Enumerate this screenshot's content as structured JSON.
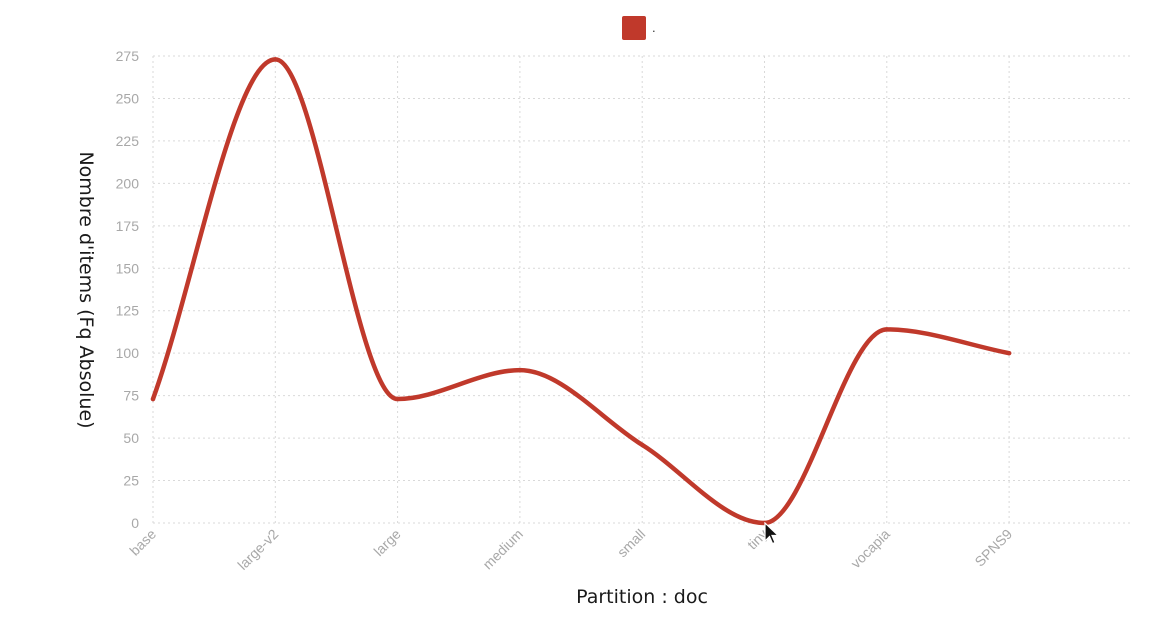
{
  "chart_data": {
    "type": "line",
    "categories": [
      "base",
      "large-v2",
      "large",
      "medium",
      "small",
      "tiny",
      "vocapia",
      "SPNS9"
    ],
    "series": [
      {
        "name": ".",
        "values": [
          73,
          273,
          73,
          90,
          46,
          0,
          114,
          100
        ]
      }
    ],
    "xlabel": "Partition : doc",
    "ylabel": "Nombre d'items (Fq Absolue)",
    "ylim": [
      0,
      275
    ],
    "yticks": [
      0,
      25,
      50,
      75,
      100,
      125,
      150,
      175,
      200,
      225,
      250,
      275
    ],
    "grid": true,
    "legend_position": "top-center",
    "smooth": true,
    "colors": {
      "series": "#c0392b",
      "grid": "#d9d9d9",
      "tick_text": "#a8a8a8",
      "axis_title": "#1a1a1a"
    }
  },
  "ui": {
    "cursor_icon": "mouse-pointer-icon"
  }
}
